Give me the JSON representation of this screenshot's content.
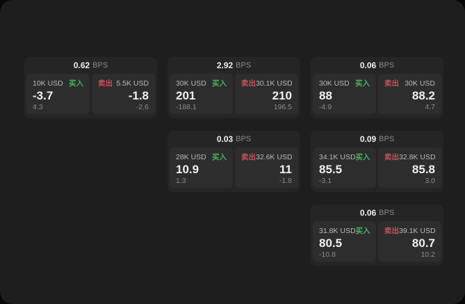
{
  "colors": {
    "page_bg": "#080808",
    "panel_bg": "#1e1e1e",
    "card_bg": "#252525",
    "tile_bg": "#2d2d2d",
    "buy_green": "#47b45f",
    "sell_red": "#c9505f",
    "text_primary": "#f0f0f0",
    "text_label": "#b8b8b8",
    "text_muted": "#8a8a8a"
  },
  "labels": {
    "bps": "BPS",
    "buy": "买入",
    "sell": "卖出"
  },
  "cards": [
    {
      "col": 1,
      "row": 1,
      "bps": "0.62",
      "buy": {
        "amount": "10K USD",
        "price": "-3.7",
        "delta": "4.3"
      },
      "sell": {
        "amount": "5.5K USD",
        "price": "-1.8",
        "delta": "-2.6"
      }
    },
    {
      "col": 2,
      "row": 1,
      "bps": "2.92",
      "buy": {
        "amount": "30K USD",
        "price": "201",
        "delta": "-188.1"
      },
      "sell": {
        "amount": "30.1K USD",
        "price": "210",
        "delta": "196.5"
      }
    },
    {
      "col": 3,
      "row": 1,
      "bps": "0.06",
      "buy": {
        "amount": "30K USD",
        "price": "88",
        "delta": "-4.9"
      },
      "sell": {
        "amount": "30K USD",
        "price": "88.2",
        "delta": "4.7"
      }
    },
    {
      "col": 2,
      "row": 2,
      "bps": "0.03",
      "buy": {
        "amount": "28K USD",
        "price": "10.9",
        "delta": "1.3"
      },
      "sell": {
        "amount": "32.6K USD",
        "price": "11",
        "delta": "-1.8"
      }
    },
    {
      "col": 3,
      "row": 2,
      "bps": "0.09",
      "buy": {
        "amount": "34.1K USD",
        "price": "85.5",
        "delta": "-3.1"
      },
      "sell": {
        "amount": "32.8K USD",
        "price": "85.8",
        "delta": "3.0"
      }
    },
    {
      "col": 3,
      "row": 3,
      "bps": "0.06",
      "buy": {
        "amount": "31.8K USD",
        "price": "80.5",
        "delta": "-10.8"
      },
      "sell": {
        "amount": "39.1K USD",
        "price": "80.7",
        "delta": "10.2"
      }
    }
  ]
}
